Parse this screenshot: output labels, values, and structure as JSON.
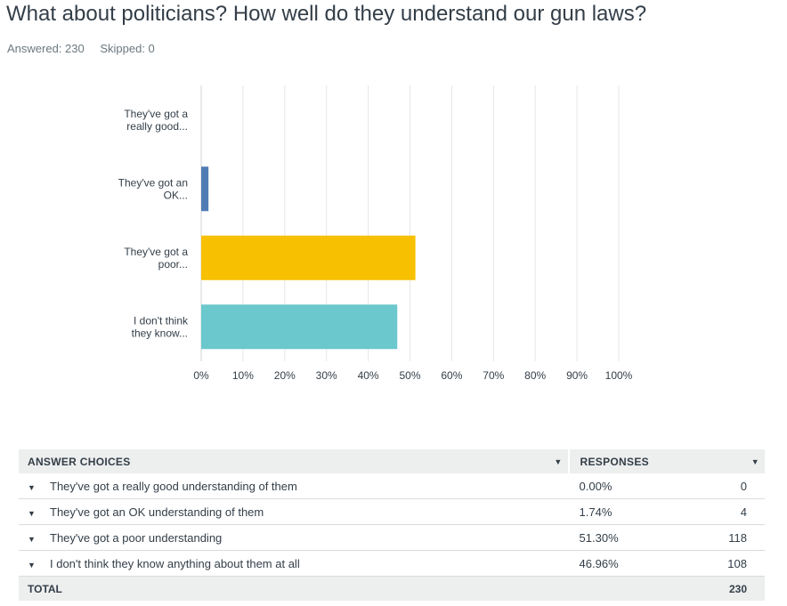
{
  "question": "What about politicians? How well do they understand our gun laws?",
  "answered_label": "Answered: 230",
  "skipped_label": "Skipped: 0",
  "colors": {
    "bar1": "#6bc8cd",
    "bar2": "#507cb6",
    "bar3": "#f7c000",
    "bar4": "#6bc8cd",
    "grid": "#e5e7e8",
    "axis": "#d0d4d6"
  },
  "chart_data": {
    "type": "bar",
    "orientation": "horizontal",
    "categories": [
      [
        "They've got a",
        "really good..."
      ],
      [
        "They've got an",
        "OK..."
      ],
      [
        "They've got a",
        "poor..."
      ],
      [
        "I don't think",
        "they know..."
      ]
    ],
    "values": [
      0.0,
      1.74,
      51.3,
      46.96
    ],
    "xlim": [
      0,
      100
    ],
    "xticks": [
      "0%",
      "10%",
      "20%",
      "30%",
      "40%",
      "50%",
      "60%",
      "70%",
      "80%",
      "90%",
      "100%"
    ],
    "grid": true
  },
  "table": {
    "header_choice": "ANSWER CHOICES",
    "header_responses": "RESPONSES",
    "rows": [
      {
        "choice": "They've got a really good understanding of them",
        "percent": "0.00%",
        "count": "0"
      },
      {
        "choice": "They've got an OK understanding of them",
        "percent": "1.74%",
        "count": "4"
      },
      {
        "choice": "They've got a poor understanding",
        "percent": "51.30%",
        "count": "118"
      },
      {
        "choice": "I don't think they know anything about them at all",
        "percent": "46.96%",
        "count": "108"
      }
    ],
    "total_label": "TOTAL",
    "total_count": "230"
  }
}
